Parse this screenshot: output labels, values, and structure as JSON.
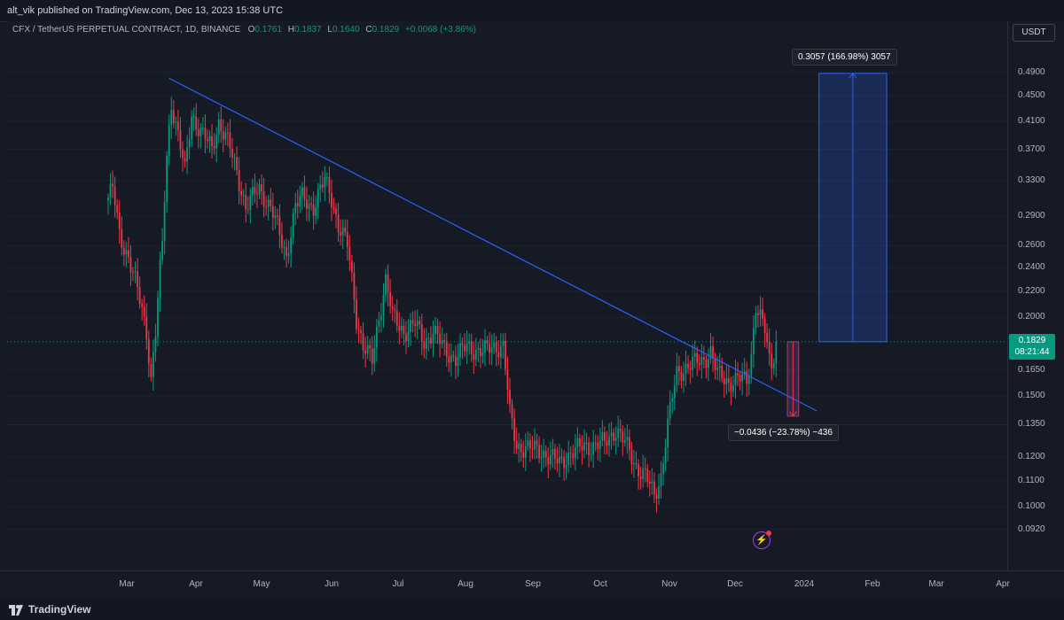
{
  "header": {
    "publish_text": "alt_vik published on TradingView.com, Dec 13, 2023 15:38 UTC"
  },
  "legend": {
    "symbol": "CFX / TetherUS PERPETUAL CONTRACT, 1D, BINANCE",
    "o_label": "O",
    "o_value": "0.1761",
    "h_label": "H",
    "h_value": "0.1837",
    "l_label": "L",
    "l_value": "0.1640",
    "c_label": "C",
    "c_value": "0.1829",
    "change": "+0.0068 (+3.86%)"
  },
  "currency_button": "USDT",
  "price_axis": {
    "ticks": [
      "0.4900",
      "0.4500",
      "0.4100",
      "0.3700",
      "0.3300",
      "0.2900",
      "0.2600",
      "0.2400",
      "0.2200",
      "0.2000",
      "0.1650",
      "0.1500",
      "0.1350",
      "0.1200",
      "0.1100",
      "0.1000",
      "0.0920"
    ],
    "current_price": "0.1829",
    "countdown": "08:21:44"
  },
  "time_axis": {
    "ticks": [
      "Mar",
      "Apr",
      "May",
      "Jun",
      "Jul",
      "Aug",
      "Sep",
      "Oct",
      "Nov",
      "Dec",
      "2024",
      "Feb",
      "Mar",
      "Apr"
    ]
  },
  "measure_up": "0.3057 (166.98%) 3057",
  "measure_down": "−0.0436 (−23.78%) −436",
  "footer": {
    "brand": "TradingView"
  },
  "colors": {
    "up": "#089981",
    "down": "#f23645",
    "trendline": "#2962ff",
    "background": "#161a25",
    "measure_fill": "#2962ff"
  },
  "chart_data": {
    "type": "candlestick",
    "symbol": "CFX / TetherUS PERPETUAL CONTRACT",
    "interval": "1D",
    "exchange": "BINANCE",
    "x_start": "2023-02-20",
    "y_scale": "log",
    "ylim": [
      0.088,
      0.53
    ],
    "trendline": [
      [
        "2023-03-19",
        0.48
      ],
      [
        "2023-12-31",
        0.142
      ]
    ],
    "measure_long": {
      "start": "2024-01-01",
      "end": "2024-01-31",
      "from": 0.1829,
      "to": 0.4886,
      "label": "0.3057 (166.98%) 3057"
    },
    "measure_short": {
      "start": "2023-12-18",
      "end": "2023-12-23",
      "from": 0.1829,
      "to": 0.1393,
      "label": "−0.0436 (−23.78%) −436"
    },
    "keypoints": [
      [
        "2023-02-20",
        0.31
      ],
      [
        "2023-02-22",
        0.32
      ],
      [
        "2023-02-25",
        0.27
      ],
      [
        "2023-03-01",
        0.25
      ],
      [
        "2023-03-05",
        0.22
      ],
      [
        "2023-03-09",
        0.19
      ],
      [
        "2023-03-11",
        0.16
      ],
      [
        "2023-03-13",
        0.19
      ],
      [
        "2023-03-16",
        0.26
      ],
      [
        "2023-03-18",
        0.36
      ],
      [
        "2023-03-20",
        0.44
      ],
      [
        "2023-03-23",
        0.39
      ],
      [
        "2023-03-26",
        0.34
      ],
      [
        "2023-03-29",
        0.42
      ],
      [
        "2023-04-03",
        0.39
      ],
      [
        "2023-04-07",
        0.37
      ],
      [
        "2023-04-10",
        0.41
      ],
      [
        "2023-04-14",
        0.38
      ],
      [
        "2023-04-18",
        0.34
      ],
      [
        "2023-04-22",
        0.3
      ],
      [
        "2023-04-28",
        0.32
      ],
      [
        "2023-05-03",
        0.3
      ],
      [
        "2023-05-07",
        0.27
      ],
      [
        "2023-05-10",
        0.25
      ],
      [
        "2023-05-14",
        0.3
      ],
      [
        "2023-05-17",
        0.31
      ],
      [
        "2023-05-22",
        0.3
      ],
      [
        "2023-05-27",
        0.33
      ],
      [
        "2023-05-30",
        0.31
      ],
      [
        "2023-06-02",
        0.28
      ],
      [
        "2023-06-06",
        0.26
      ],
      [
        "2023-06-10",
        0.2
      ],
      [
        "2023-06-13",
        0.18
      ],
      [
        "2023-06-17",
        0.17
      ],
      [
        "2023-06-20",
        0.2
      ],
      [
        "2023-06-23",
        0.23
      ],
      [
        "2023-06-26",
        0.2
      ],
      [
        "2023-07-01",
        0.19
      ],
      [
        "2023-07-06",
        0.195
      ],
      [
        "2023-07-10",
        0.183
      ],
      [
        "2023-07-14",
        0.19
      ],
      [
        "2023-07-19",
        0.178
      ],
      [
        "2023-07-24",
        0.172
      ],
      [
        "2023-07-29",
        0.18
      ],
      [
        "2023-08-05",
        0.176
      ],
      [
        "2023-08-10",
        0.18
      ],
      [
        "2023-08-14",
        0.18
      ],
      [
        "2023-08-17",
        0.14
      ],
      [
        "2023-08-20",
        0.125
      ],
      [
        "2023-08-25",
        0.124
      ],
      [
        "2023-09-01",
        0.122
      ],
      [
        "2023-09-08",
        0.117
      ],
      [
        "2023-09-13",
        0.122
      ],
      [
        "2023-09-20",
        0.125
      ],
      [
        "2023-09-28",
        0.126
      ],
      [
        "2023-10-03",
        0.133
      ],
      [
        "2023-10-07",
        0.126
      ],
      [
        "2023-10-12",
        0.116
      ],
      [
        "2023-10-16",
        0.112
      ],
      [
        "2023-10-20",
        0.104
      ],
      [
        "2023-10-23",
        0.112
      ],
      [
        "2023-10-26",
        0.135
      ],
      [
        "2023-10-30",
        0.163
      ],
      [
        "2023-11-04",
        0.168
      ],
      [
        "2023-11-10",
        0.17
      ],
      [
        "2023-11-14",
        0.177
      ],
      [
        "2023-11-17",
        0.162
      ],
      [
        "2023-11-22",
        0.158
      ],
      [
        "2023-11-26",
        0.16
      ],
      [
        "2023-11-30",
        0.158
      ],
      [
        "2023-12-02",
        0.175
      ],
      [
        "2023-12-04",
        0.21
      ],
      [
        "2023-12-06",
        0.2
      ],
      [
        "2023-12-08",
        0.19
      ],
      [
        "2023-12-10",
        0.17
      ],
      [
        "2023-12-11",
        0.168
      ],
      [
        "2023-12-13",
        0.1829
      ]
    ]
  }
}
